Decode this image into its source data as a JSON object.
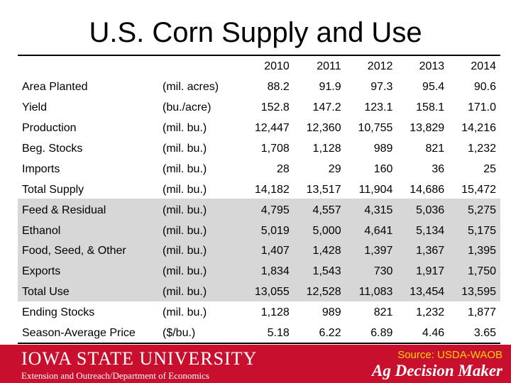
{
  "title": "U.S. Corn Supply and Use",
  "years": [
    "2010",
    "2011",
    "2012",
    "2013",
    "2014"
  ],
  "rows": [
    {
      "label": "Area Planted",
      "unit": "(mil. acres)",
      "values": [
        "88.2",
        "91.9",
        "97.3",
        "95.4",
        "90.6"
      ]
    },
    {
      "label": "Yield",
      "unit": "(bu./acre)",
      "values": [
        "152.8",
        "147.2",
        "123.1",
        "158.1",
        "171.0"
      ]
    },
    {
      "label": "Production",
      "unit": "(mil. bu.)",
      "values": [
        "12,447",
        "12,360",
        "10,755",
        "13,829",
        "14,216"
      ]
    },
    {
      "label": "Beg. Stocks",
      "unit": "(mil. bu.)",
      "values": [
        "1,708",
        "1,128",
        "989",
        "821",
        "1,232"
      ]
    },
    {
      "label": "Imports",
      "unit": "(mil. bu.)",
      "values": [
        "28",
        "29",
        "160",
        "36",
        "25"
      ]
    },
    {
      "label": "Total Supply",
      "unit": "(mil. bu.)",
      "values": [
        "14,182",
        "13,517",
        "11,904",
        "14,686",
        "15,472"
      ]
    },
    {
      "label": "Feed & Residual",
      "unit": "(mil. bu.)",
      "values": [
        "4,795",
        "4,557",
        "4,315",
        "5,036",
        "5,275"
      ]
    },
    {
      "label": "Ethanol",
      "unit": "(mil. bu.)",
      "values": [
        "5,019",
        "5,000",
        "4,641",
        "5,134",
        "5,175"
      ]
    },
    {
      "label": "Food, Seed, & Other",
      "unit": "(mil. bu.)",
      "values": [
        "1,407",
        "1,428",
        "1,397",
        "1,367",
        "1,395"
      ]
    },
    {
      "label": "Exports",
      "unit": "(mil. bu.)",
      "values": [
        "1,834",
        "1,543",
        "730",
        "1,917",
        "1,750"
      ]
    },
    {
      "label": "Total Use",
      "unit": "(mil. bu.)",
      "values": [
        "13,055",
        "12,528",
        "11,083",
        "13,454",
        "13,595"
      ]
    },
    {
      "label": "Ending Stocks",
      "unit": "(mil. bu.)",
      "values": [
        "1,128",
        "989",
        "821",
        "1,232",
        "1,877"
      ]
    },
    {
      "label": "Season-Average Price",
      "unit": "($/bu.)",
      "values": [
        "5.18",
        "6.22",
        "6.89",
        "4.46",
        "3.65"
      ]
    }
  ],
  "footer": {
    "university": "IOWA STATE UNIVERSITY",
    "extension": "Extension and Outreach/Department of Economics",
    "source": "Source: USDA-WAOB",
    "brand": "Ag Decision Maker"
  },
  "colors": {
    "footer_red": "#c8102e",
    "source_yellow": "#ffd400",
    "shade_gray": "#d7d7d7"
  }
}
